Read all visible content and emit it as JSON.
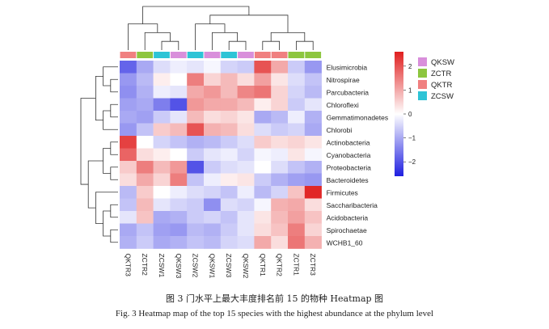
{
  "chart_data": {
    "type": "heatmap",
    "title": "",
    "columns": [
      "QKTR3",
      "ZCTR2",
      "ZCSW1",
      "QKSW3",
      "ZCSW2",
      "QKSW1",
      "ZCSW3",
      "QKSW2",
      "QKTR1",
      "QKTR2",
      "ZCTR1",
      "ZCTR3"
    ],
    "column_groups": [
      "QKTR",
      "ZCTR",
      "ZCSW",
      "QKSW",
      "ZCSW",
      "QKSW",
      "ZCSW",
      "QKSW",
      "QKTR",
      "QKTR",
      "ZCTR",
      "ZCTR"
    ],
    "rows": [
      "Elusimicrobia",
      "Nitrospirae",
      "Parcubacteria",
      "Chloroflexi",
      "Gemmatimonadetes",
      "Chlorobi",
      "Actinobacteria",
      "Cyanobacteria",
      "Proteobacteria",
      "Bacteroidetes",
      "Firmicutes",
      "Saccharibacteria",
      "Acidobacteria",
      "Spirochaetae",
      "WCHB1_60"
    ],
    "values": [
      [
        -1.8,
        -1.0,
        -0.4,
        -0.2,
        -0.3,
        -0.1,
        -0.5,
        -0.6,
        2.0,
        1.0,
        -0.6,
        -1.2
      ],
      [
        -1.2,
        -0.8,
        0.2,
        0.0,
        1.5,
        0.5,
        0.8,
        0.4,
        1.1,
        0.3,
        -0.4,
        -0.7
      ],
      [
        -1.3,
        -0.9,
        -0.2,
        -0.3,
        1.0,
        1.2,
        0.8,
        1.4,
        1.6,
        0.5,
        -0.5,
        -0.8
      ],
      [
        -1.1,
        -1.0,
        -1.5,
        -2.0,
        1.2,
        1.0,
        1.0,
        0.8,
        0.2,
        0.5,
        -0.6,
        -0.3
      ],
      [
        -1.0,
        -1.1,
        -0.6,
        -0.3,
        0.8,
        0.4,
        0.5,
        0.3,
        -1.0,
        -0.8,
        -0.2,
        -0.9
      ],
      [
        -1.2,
        -0.7,
        0.6,
        0.8,
        2.0,
        0.9,
        0.8,
        0.4,
        -0.4,
        -0.6,
        -0.5,
        -1.0
      ],
      [
        2.2,
        0.0,
        -0.5,
        -0.7,
        -0.9,
        -0.8,
        -0.6,
        -0.4,
        0.6,
        0.4,
        0.5,
        0.3
      ],
      [
        1.8,
        0.4,
        0.2,
        0.0,
        -0.6,
        -0.3,
        -0.2,
        -0.5,
        -0.1,
        -0.2,
        0.3,
        -0.1
      ],
      [
        0.6,
        1.5,
        0.8,
        1.2,
        -2.0,
        -0.6,
        -0.4,
        -0.3,
        0.0,
        -0.4,
        -0.7,
        -0.9
      ],
      [
        0.4,
        1.0,
        0.5,
        1.5,
        -0.7,
        -0.2,
        0.2,
        0.3,
        -0.6,
        -0.9,
        -1.1,
        -1.2
      ],
      [
        -0.8,
        0.6,
        0.0,
        -0.2,
        -0.4,
        -0.5,
        -0.7,
        -0.2,
        -0.8,
        -0.5,
        0.7,
        2.5
      ],
      [
        -0.7,
        0.8,
        -0.3,
        -0.5,
        -0.6,
        -1.3,
        -0.4,
        -0.5,
        -0.1,
        0.9,
        1.0,
        0.4
      ],
      [
        -0.3,
        0.7,
        -1.0,
        -0.9,
        -0.6,
        -0.5,
        -0.7,
        -0.3,
        0.3,
        0.8,
        1.1,
        0.7
      ],
      [
        -1.0,
        -0.7,
        -1.1,
        -1.2,
        -0.8,
        -0.9,
        -0.6,
        -0.3,
        0.4,
        0.7,
        1.5,
        0.5
      ],
      [
        -0.9,
        -0.6,
        -1.0,
        -0.9,
        -0.7,
        -0.8,
        -0.5,
        -0.4,
        1.0,
        0.4,
        1.6,
        0.9
      ]
    ],
    "legend_groups": [
      {
        "name": "QKSW",
        "color": "#d98fdb"
      },
      {
        "name": "ZCTR",
        "color": "#8dc63f"
      },
      {
        "name": "QKTR",
        "color": "#f08080"
      },
      {
        "name": "ZCSW",
        "color": "#2ec4d6"
      }
    ],
    "colorbar": {
      "ticks": [
        2,
        1,
        0,
        -1,
        -2
      ],
      "range": [
        -2.6,
        2.6
      ],
      "low": "#1f1fe0",
      "mid": "#ffffff",
      "high": "#e01f1f"
    },
    "row_tree": [
      [
        [
          0,
          [
            1,
            2
          ]
        ],
        [
          [
            3,
            4
          ],
          5
        ]
      ],
      [
        [
          [
            6,
            7
          ],
          [
            8,
            9
          ]
        ],
        [
          10,
          [
            [
              11,
              12
            ],
            [
              13,
              14
            ]
          ]
        ]
      ]
    ],
    "col_tree": [
      [
        0,
        [
          1,
          [
            2,
            3
          ]
        ]
      ],
      [
        [
          4,
          [
            5,
            [
              6,
              7
            ]
          ]
        ],
        [
          [
            8,
            9
          ],
          [
            10,
            11
          ]
        ]
      ]
    ],
    "legend_placement": "right"
  },
  "caption": {
    "cn": "图 3  门水平上最大丰度排名前 15 的物种 Heatmap 图",
    "en": "Fig. 3 Heatmap map of the top 15 species with the highest abundance at the phylum level"
  }
}
